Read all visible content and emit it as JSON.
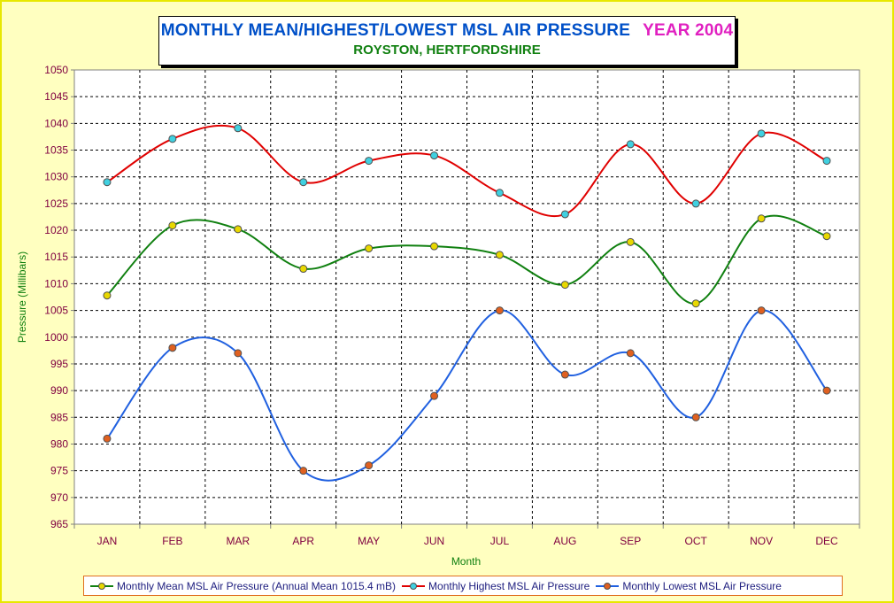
{
  "title": {
    "main": "MONTHLY MEAN/HIGHEST/LOWEST MSL AIR PRESSURE",
    "year": "YEAR 2004",
    "subtitle": "ROYSTON, HERTFORDSHIRE"
  },
  "chart_data": {
    "type": "line",
    "title": "MONTHLY MEAN/HIGHEST/LOWEST MSL AIR PRESSURE  YEAR 2004",
    "subtitle": "ROYSTON, HERTFORDSHIRE",
    "xlabel": "Month",
    "ylabel": "Pressure (Millibars)",
    "categories": [
      "JAN",
      "FEB",
      "MAR",
      "APR",
      "MAY",
      "JUN",
      "JUL",
      "AUG",
      "SEP",
      "OCT",
      "NOV",
      "DEC"
    ],
    "ylim": [
      965,
      1050
    ],
    "ytick_step": 5,
    "grid": true,
    "legend_position": "bottom",
    "series": [
      {
        "name": "Monthly Mean MSL Air Pressure (Annual Mean 1015.4 mB)",
        "color": "#108010",
        "marker_color": "#e8d800",
        "values": [
          1007.8,
          1020.9,
          1020.2,
          1012.8,
          1016.6,
          1017.0,
          1015.4,
          1009.8,
          1017.8,
          1006.3,
          1022.2,
          1018.9
        ]
      },
      {
        "name": "Monthly Highest MSL Air Pressure",
        "color": "#e00000",
        "marker_color": "#40d0e0",
        "values": [
          1029.0,
          1037.1,
          1039.1,
          1029.0,
          1033.0,
          1034.0,
          1027.0,
          1023.0,
          1036.1,
          1025.0,
          1038.1,
          1033.0
        ]
      },
      {
        "name": "Monthly Lowest MSL Air Pressure",
        "color": "#2060e0",
        "marker_color": "#e06020",
        "values": [
          981.0,
          998.0,
          997.0,
          975.0,
          976.0,
          989.0,
          1005.0,
          993.0,
          997.0,
          985.0,
          1005.0,
          990.0
        ]
      }
    ]
  }
}
